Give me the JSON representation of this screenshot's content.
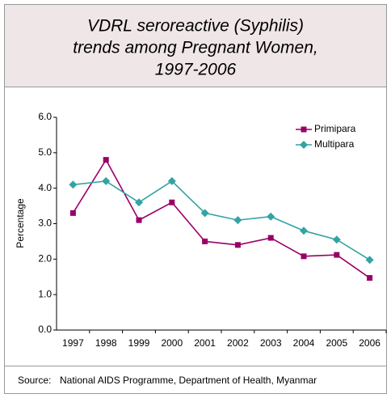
{
  "chart_data": {
    "type": "line",
    "title": [
      "VDRL seroreactive (Syphilis)",
      "trends among Pregnant Women,",
      "1997-2006"
    ],
    "y_label": "Percentage",
    "categories": [
      "1997",
      "1998",
      "1999",
      "2000",
      "2001",
      "2002",
      "2003",
      "2004",
      "2005",
      "2006"
    ],
    "series": [
      {
        "name": "Primipara",
        "color": "#990066",
        "marker": "square",
        "values": [
          3.3,
          4.8,
          3.1,
          3.6,
          2.5,
          2.4,
          2.6,
          2.08,
          2.12,
          1.47
        ]
      },
      {
        "name": "Multipara",
        "color": "#33a3a3",
        "marker": "diamond",
        "values": [
          4.1,
          4.2,
          3.6,
          4.2,
          3.3,
          3.1,
          3.2,
          2.8,
          2.55,
          1.98
        ]
      }
    ],
    "ylim": [
      0,
      6
    ],
    "yticks": [
      {
        "value": 0,
        "label": "0.0"
      },
      {
        "value": 1,
        "label": "1.0"
      },
      {
        "value": 2,
        "label": "2.0"
      },
      {
        "value": 3,
        "label": "3.0"
      },
      {
        "value": 4,
        "label": "4.0"
      },
      {
        "value": 5,
        "label": "5.0"
      },
      {
        "value": 6,
        "label": "6.0"
      }
    ],
    "legend": "upper right",
    "source_label": "Source:",
    "source": "National AIDS Programme, Department of Health, Myanmar"
  }
}
